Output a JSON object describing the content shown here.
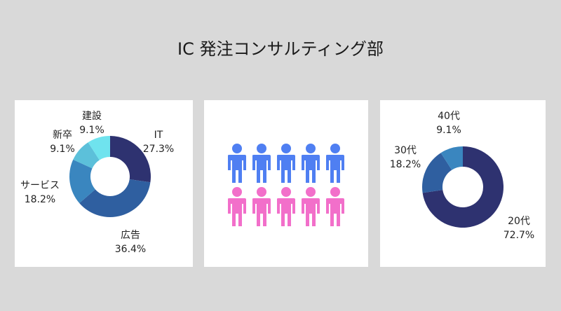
{
  "title": "IC 発注コンサルティング部",
  "chart_data": [
    {
      "type": "pie",
      "variant": "donut",
      "categories": [
        "IT",
        "広告",
        "サービス",
        "新卒",
        "建設"
      ],
      "values": [
        27.3,
        36.4,
        18.2,
        9.1,
        9.1
      ],
      "labels": [
        "27.3%",
        "36.4%",
        "18.2%",
        "9.1%",
        "9.1%"
      ],
      "colors": [
        "#2e3270",
        "#2f5fa0",
        "#3a86bf",
        "#5cc0da",
        "#6fe3ee"
      ]
    },
    {
      "type": "pictogram",
      "rows": [
        {
          "count": 5,
          "color": "#4f7ff2"
        },
        {
          "count": 5,
          "color": "#f26fca"
        }
      ]
    },
    {
      "type": "pie",
      "variant": "donut",
      "categories": [
        "20代",
        "30代",
        "40代"
      ],
      "values": [
        72.7,
        18.2,
        9.1
      ],
      "labels": [
        "72.7%",
        "18.2%",
        "9.1%"
      ],
      "colors": [
        "#2e3270",
        "#2f5fa0",
        "#3a86bf"
      ]
    }
  ]
}
